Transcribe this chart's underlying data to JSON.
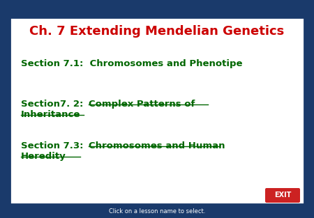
{
  "title": "Ch. 7 Extending Mendelian Genetics",
  "title_color": "#cc0000",
  "title_fontsize": 13,
  "bg_outer": "#1a3a6b",
  "bg_inner": "#ffffff",
  "section1_label": "Section 7.1:  Chromosomes and Phenotipe",
  "section1_label_color": "#006600",
  "section2_label": "Section7. 2:   ",
  "section2_link_line1": "Complex Patterns of",
  "section2_link_line2": "Inheritance",
  "section2_label_color": "#006600",
  "section2_link_color": "#006600",
  "section3_label": "Section 7.3:   ",
  "section3_link_line1": "Chromosomes and Human",
  "section3_link_line2": "Heredity",
  "section3_label_color": "#006600",
  "section3_link_color": "#006600",
  "exit_bg": "#cc2222",
  "exit_text": "EXIT",
  "exit_text_color": "#ffffff",
  "footer_text": "Click on a lesson name to select.",
  "footer_color": "#ffffff",
  "footer_fontsize": 6
}
